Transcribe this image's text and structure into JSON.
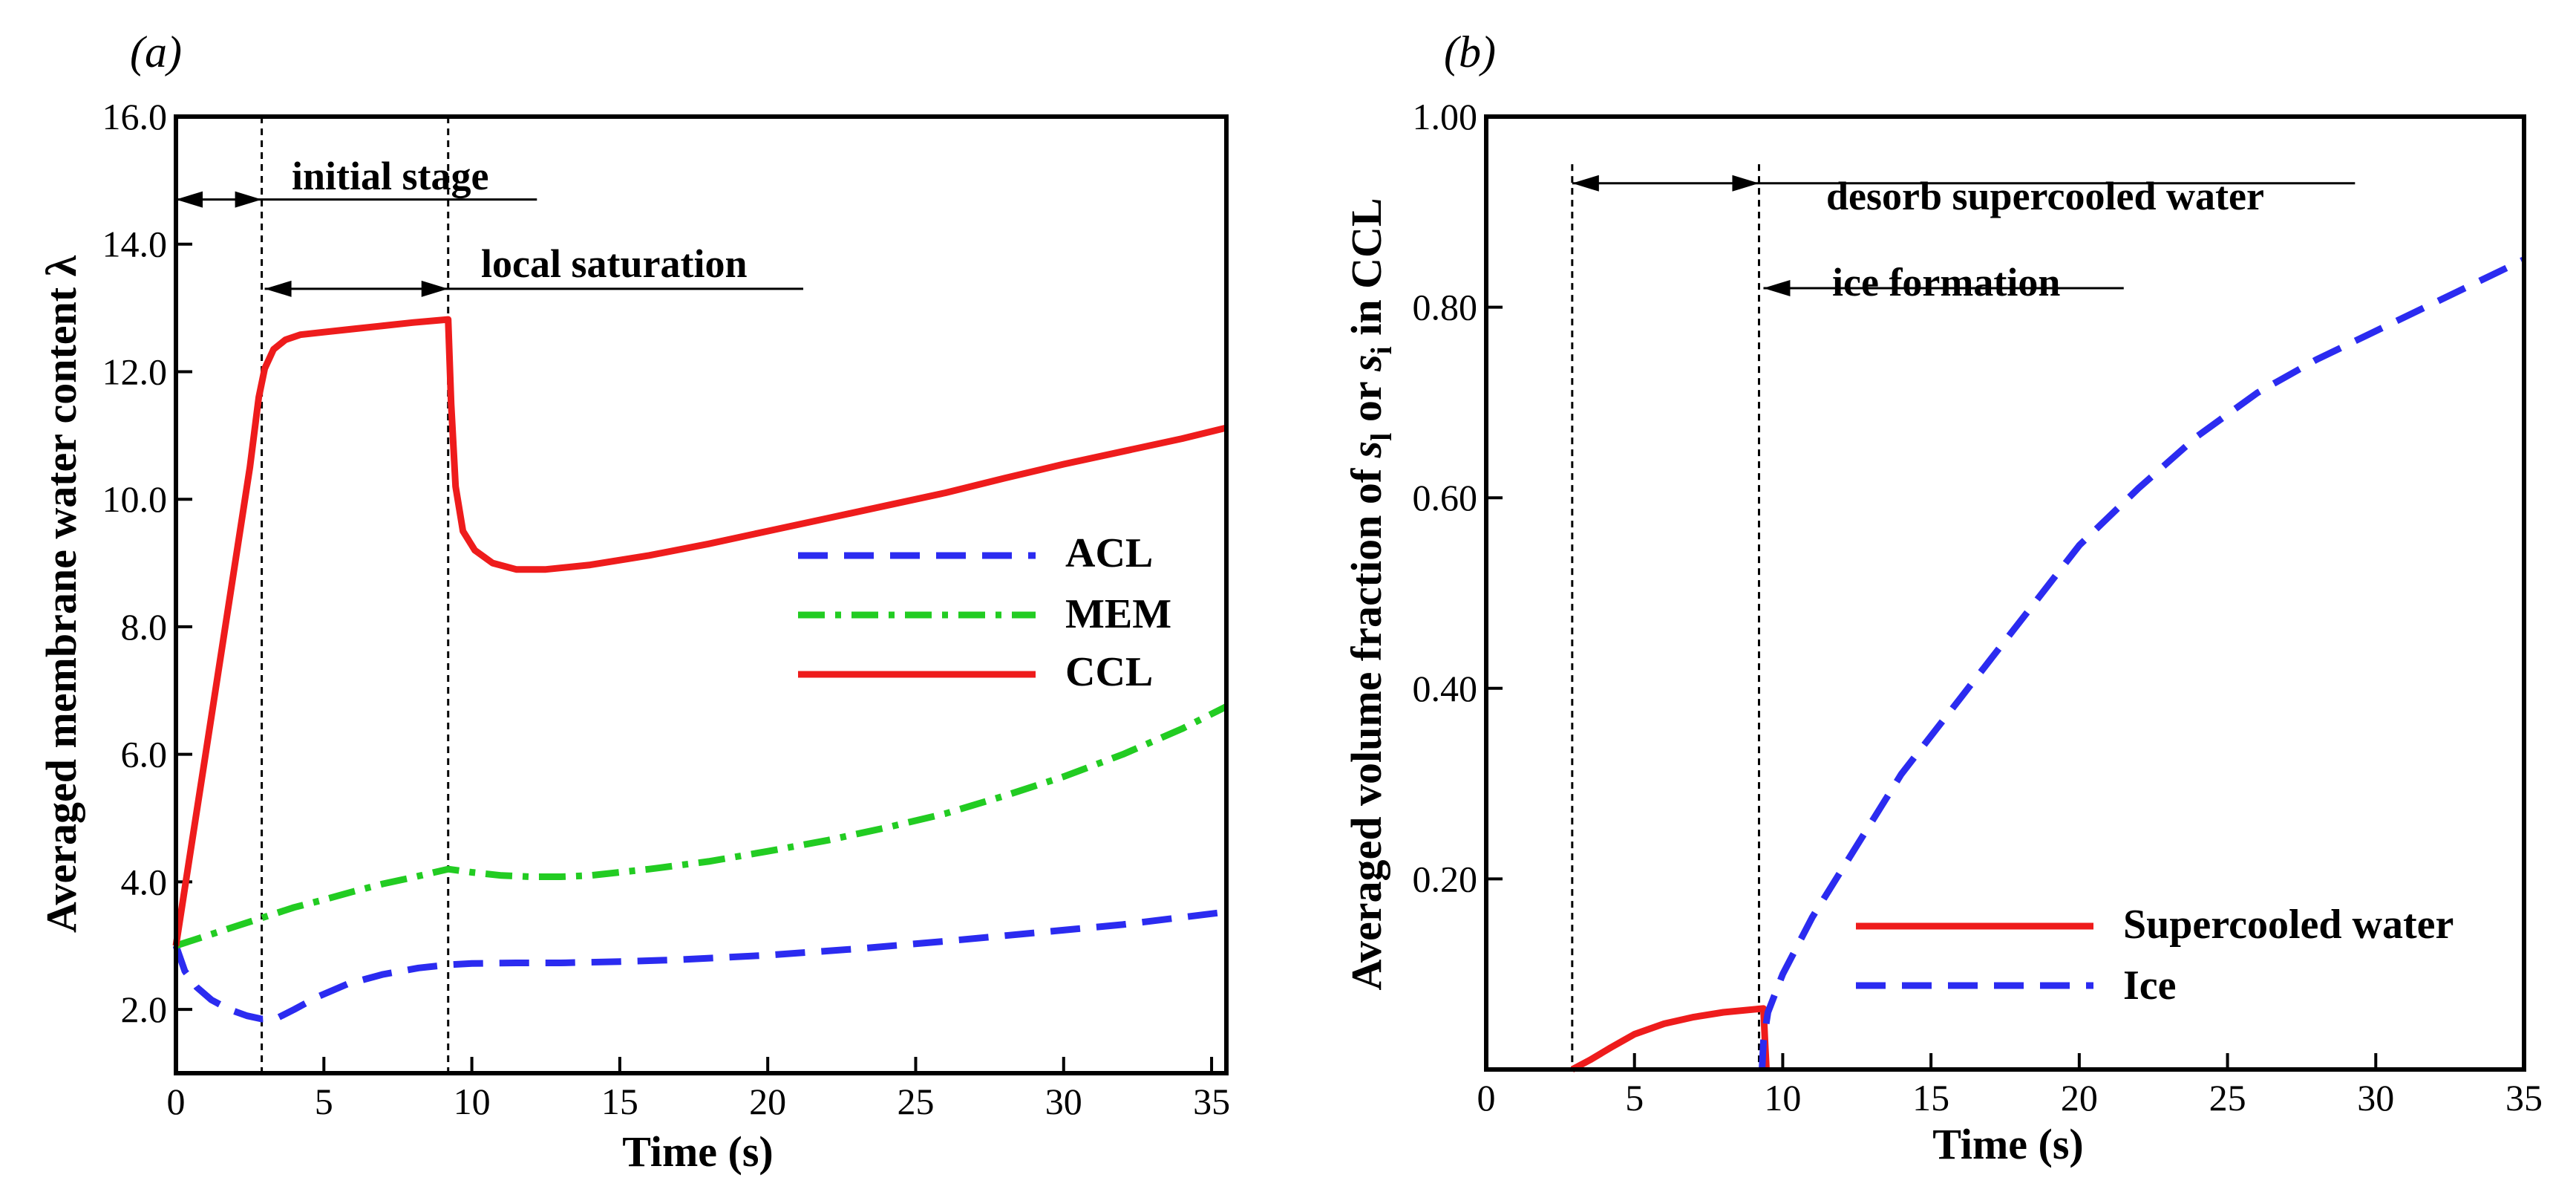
{
  "chart_data": [
    {
      "type": "line",
      "panel_label": "(a)",
      "xlabel": "Time (s)",
      "ylabel": "Averaged membrane water content λ",
      "xlim": [
        0,
        35.5
      ],
      "ylim": [
        1.0,
        16.0
      ],
      "xticks": [
        0,
        5,
        10,
        15,
        20,
        25,
        30,
        35
      ],
      "xtick_labels": [
        "0",
        "5",
        "10",
        "15",
        "20",
        "25",
        "30",
        "35"
      ],
      "yticks": [
        2,
        4,
        6,
        8,
        10,
        12,
        14,
        16
      ],
      "ytick_labels": [
        "2.0",
        "4.0",
        "6.0",
        "8.0",
        "10.0",
        "12.0",
        "14.0",
        "16.0"
      ],
      "grid": false,
      "legend_position": "right",
      "series": [
        {
          "name": "ACL",
          "color": "#2b2bf0",
          "dash": "dash",
          "points": [
            [
              0,
              3.0
            ],
            [
              0.3,
              2.6
            ],
            [
              0.7,
              2.35
            ],
            [
              1.2,
              2.15
            ],
            [
              1.8,
              2.0
            ],
            [
              2.4,
              1.9
            ],
            [
              2.9,
              1.85
            ],
            [
              3.4,
              1.86
            ],
            [
              4.0,
              2.0
            ],
            [
              4.8,
              2.2
            ],
            [
              5.8,
              2.4
            ],
            [
              7.0,
              2.55
            ],
            [
              8.2,
              2.65
            ],
            [
              9.2,
              2.7
            ],
            [
              10.0,
              2.72
            ],
            [
              11.5,
              2.73
            ],
            [
              13.0,
              2.73
            ],
            [
              15.0,
              2.75
            ],
            [
              17.0,
              2.78
            ],
            [
              20.0,
              2.85
            ],
            [
              23.0,
              2.95
            ],
            [
              26.0,
              3.07
            ],
            [
              29.0,
              3.2
            ],
            [
              32.0,
              3.33
            ],
            [
              35.5,
              3.53
            ]
          ]
        },
        {
          "name": "MEM",
          "color": "#22cc22",
          "dash": "dashdot",
          "points": [
            [
              0,
              3.0
            ],
            [
              1,
              3.15
            ],
            [
              2,
              3.3
            ],
            [
              3,
              3.45
            ],
            [
              4,
              3.6
            ],
            [
              5,
              3.72
            ],
            [
              6,
              3.85
            ],
            [
              7,
              3.97
            ],
            [
              8,
              4.07
            ],
            [
              9.2,
              4.2
            ],
            [
              10,
              4.15
            ],
            [
              11,
              4.1
            ],
            [
              12,
              4.08
            ],
            [
              13,
              4.08
            ],
            [
              14,
              4.1
            ],
            [
              16,
              4.2
            ],
            [
              18,
              4.32
            ],
            [
              20,
              4.48
            ],
            [
              22,
              4.65
            ],
            [
              24,
              4.85
            ],
            [
              26,
              5.07
            ],
            [
              28,
              5.35
            ],
            [
              30,
              5.65
            ],
            [
              32,
              6.0
            ],
            [
              34,
              6.4
            ],
            [
              35.5,
              6.75
            ]
          ]
        },
        {
          "name": "CCL",
          "color": "#ee1c1c",
          "dash": "solid",
          "points": [
            [
              0,
              3.0
            ],
            [
              0.5,
              4.5
            ],
            [
              1,
              6.0
            ],
            [
              1.5,
              7.5
            ],
            [
              2,
              9.0
            ],
            [
              2.5,
              10.5
            ],
            [
              2.8,
              11.6
            ],
            [
              3.0,
              12.05
            ],
            [
              3.3,
              12.35
            ],
            [
              3.7,
              12.5
            ],
            [
              4.2,
              12.58
            ],
            [
              5,
              12.62
            ],
            [
              6,
              12.67
            ],
            [
              7,
              12.72
            ],
            [
              8,
              12.77
            ],
            [
              9.2,
              12.82
            ],
            [
              9.3,
              11.5
            ],
            [
              9.45,
              10.2
            ],
            [
              9.7,
              9.5
            ],
            [
              10.1,
              9.2
            ],
            [
              10.7,
              9.0
            ],
            [
              11.5,
              8.9
            ],
            [
              12.5,
              8.9
            ],
            [
              14,
              8.97
            ],
            [
              16,
              9.12
            ],
            [
              18,
              9.3
            ],
            [
              20,
              9.5
            ],
            [
              22,
              9.7
            ],
            [
              24,
              9.9
            ],
            [
              26,
              10.1
            ],
            [
              28,
              10.33
            ],
            [
              30,
              10.55
            ],
            [
              32,
              10.75
            ],
            [
              34,
              10.95
            ],
            [
              35.5,
              11.12
            ]
          ]
        }
      ],
      "annotations": [
        {
          "text": "initial stage",
          "x": 1.5,
          "y": 14.7
        },
        {
          "text": "local saturation",
          "x": 6.1,
          "y": 13.3
        }
      ],
      "vlines": [
        2.9,
        9.2
      ]
    },
    {
      "type": "line",
      "panel_label": "(b)",
      "xlabel": "Time (s)",
      "ylabel_parts": [
        "Averaged volume fraction of ",
        "s",
        "l",
        " or ",
        "s",
        "i",
        " in CCL"
      ],
      "xlim": [
        0,
        35
      ],
      "ylim": [
        0.0,
        1.0
      ],
      "xticks": [
        0,
        5,
        10,
        15,
        20,
        25,
        30,
        35
      ],
      "xtick_labels": [
        "0",
        "5",
        "10",
        "15",
        "20",
        "25",
        "30",
        "35"
      ],
      "yticks": [
        0.2,
        0.4,
        0.6,
        0.8,
        1.0
      ],
      "ytick_labels": [
        "0.20",
        "0.40",
        "0.60",
        "0.80",
        "1.00"
      ],
      "grid": false,
      "legend_position": "bottom-right",
      "series": [
        {
          "name": "Supercooled water",
          "color": "#ee1c1c",
          "dash": "solid",
          "points": [
            [
              2.9,
              0.0
            ],
            [
              3.5,
              0.01
            ],
            [
              4.2,
              0.023
            ],
            [
              5.0,
              0.037
            ],
            [
              6.0,
              0.048
            ],
            [
              7.0,
              0.055
            ],
            [
              8.0,
              0.06
            ],
            [
              9.0,
              0.063
            ],
            [
              9.35,
              0.064
            ],
            [
              9.4,
              0.03
            ],
            [
              9.45,
              0.0
            ]
          ]
        },
        {
          "name": "Ice",
          "color": "#2b2bf0",
          "dash": "dash",
          "points": [
            [
              9.3,
              0.0
            ],
            [
              9.35,
              0.03
            ],
            [
              9.5,
              0.06
            ],
            [
              10.0,
              0.1
            ],
            [
              11,
              0.16
            ],
            [
              12,
              0.21
            ],
            [
              13,
              0.26
            ],
            [
              14,
              0.31
            ],
            [
              15,
              0.35
            ],
            [
              16,
              0.39
            ],
            [
              17,
              0.43
            ],
            [
              18,
              0.47
            ],
            [
              19,
              0.51
            ],
            [
              20,
              0.55
            ],
            [
              22,
              0.61
            ],
            [
              24,
              0.665
            ],
            [
              26,
              0.71
            ],
            [
              28,
              0.745
            ],
            [
              30,
              0.775
            ],
            [
              32,
              0.805
            ],
            [
              34,
              0.835
            ],
            [
              35,
              0.85
            ]
          ]
        }
      ],
      "annotations": [
        {
          "text": "desorb supercooled water",
          "x": 6.1,
          "y": 0.93
        },
        {
          "text": "ice formation",
          "x": 9.35,
          "y": 0.82
        }
      ],
      "vlines": [
        2.9,
        9.2
      ]
    }
  ]
}
